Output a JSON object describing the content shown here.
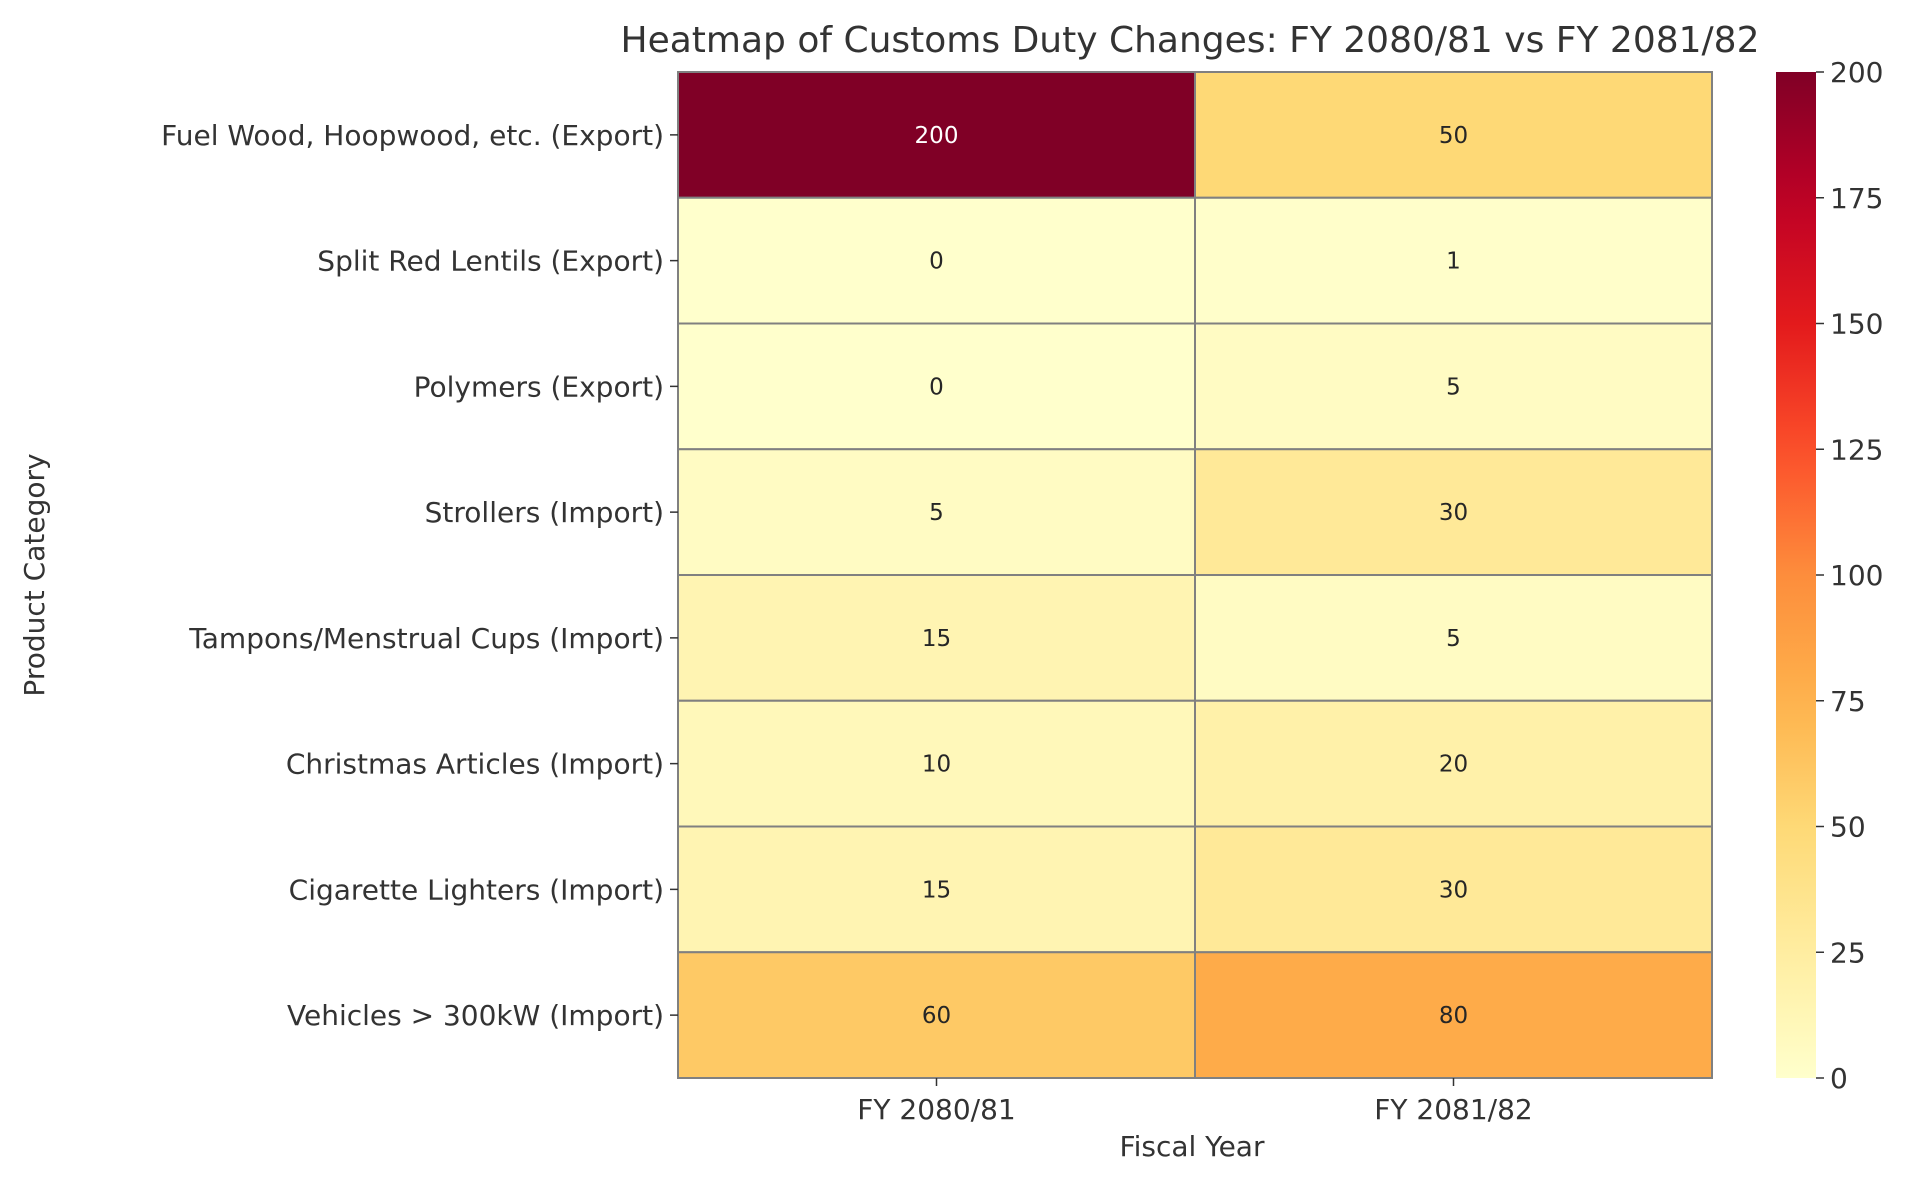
{
  "chart_data": {
    "type": "heatmap",
    "title": "Heatmap of Customs Duty Changes: FY 2080/81 vs FY 2081/82",
    "xlabel": "Fiscal Year",
    "ylabel": "Product Category",
    "columns": [
      "FY 2080/81",
      "FY 2081/82"
    ],
    "rows": [
      "Fuel Wood, Hoopwood, etc. (Export)",
      "Split Red Lentils (Export)",
      "Polymers (Export)",
      "Strollers (Import)",
      "Tampons/Menstrual Cups (Import)",
      "Christmas Articles (Import)",
      "Cigarette Lighters (Import)",
      "Vehicles > 300kW (Import)"
    ],
    "values": [
      [
        200,
        50
      ],
      [
        0,
        1
      ],
      [
        0,
        5
      ],
      [
        5,
        30
      ],
      [
        15,
        5
      ],
      [
        10,
        20
      ],
      [
        15,
        30
      ],
      [
        60,
        80
      ]
    ],
    "colormap": "YlOrRd",
    "vmin": 0,
    "vmax": 200,
    "colorbar_ticks": [
      "0",
      "25",
      "50",
      "75",
      "100",
      "125",
      "150",
      "175",
      "200"
    ],
    "colors": {
      "text": "#333333",
      "cell_border": "#808080"
    }
  }
}
